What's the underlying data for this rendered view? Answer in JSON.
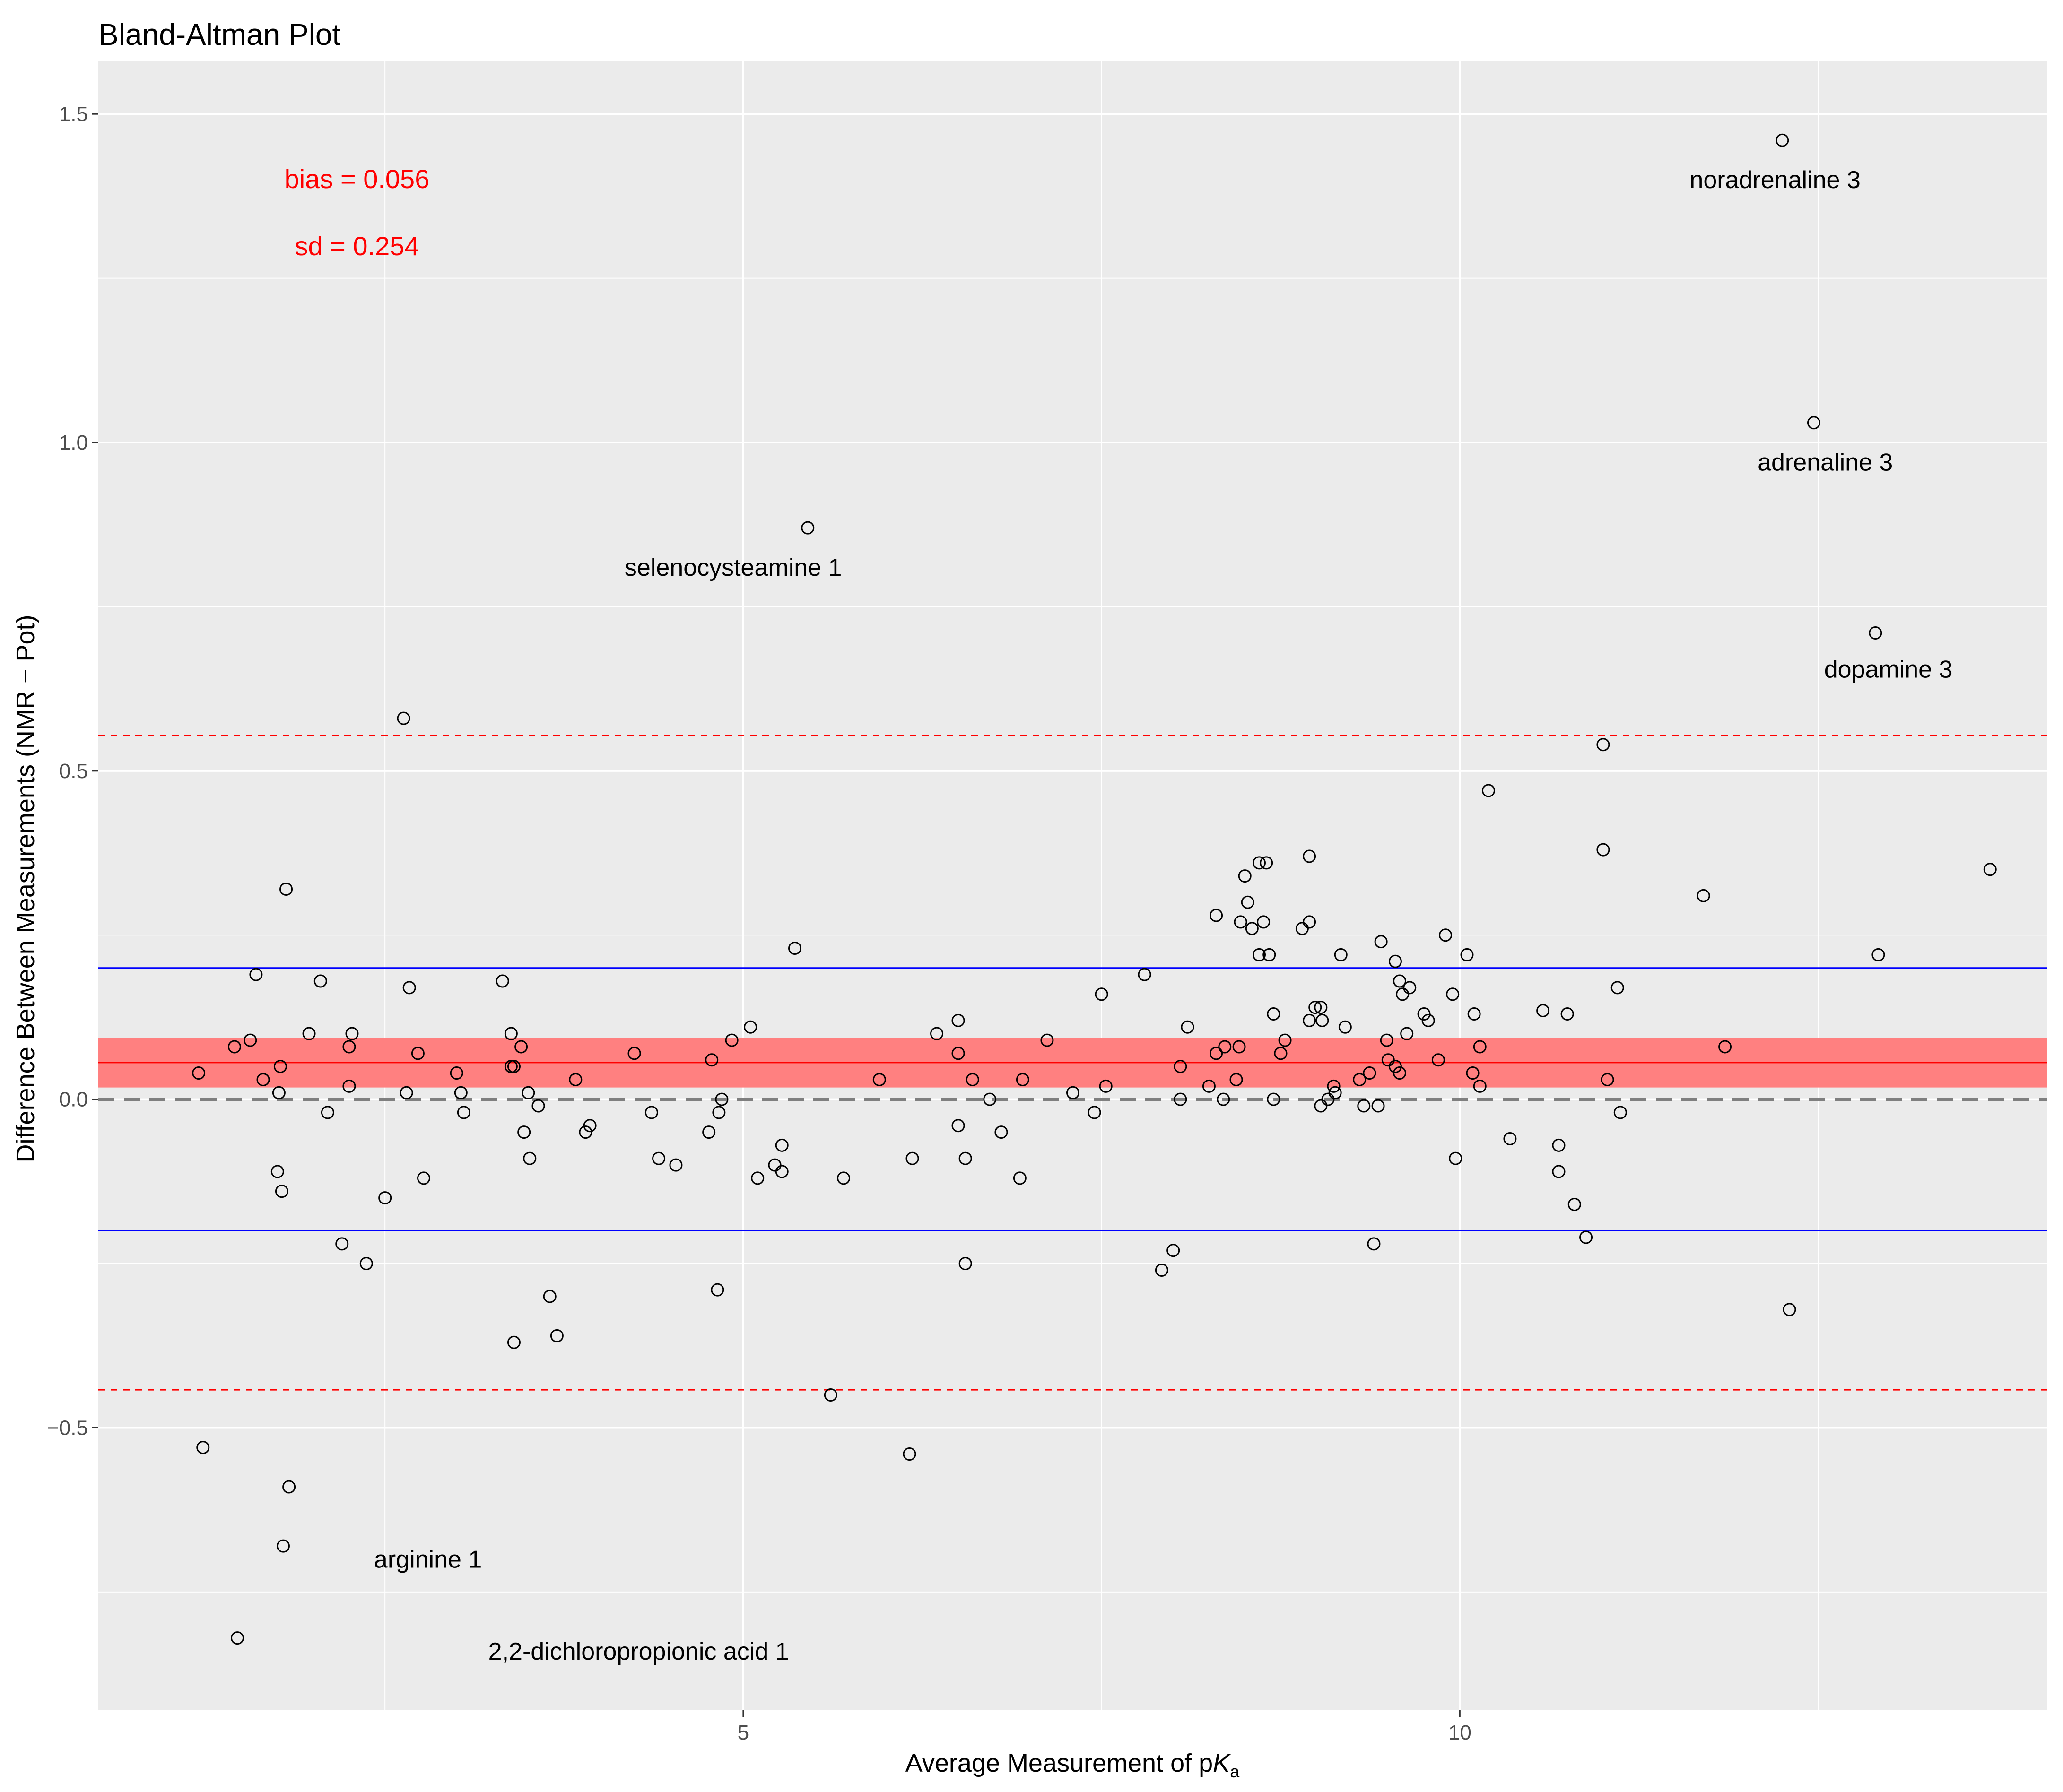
{
  "chart_data": {
    "type": "scatter",
    "title": "Bland-Altman Plot",
    "xlabel": {
      "prefix": "Average Measurement of p",
      "var": "K",
      "sub": "a"
    },
    "ylabel": "Difference Between Measurements (NMR − Pot)",
    "xlim": [
      0.5,
      14.1
    ],
    "ylim": [
      -0.93,
      1.58
    ],
    "x_ticks": [
      5,
      10
    ],
    "x_tick_labels": [
      "5",
      "10"
    ],
    "y_ticks": [
      -0.5,
      0.0,
      0.5,
      1.0,
      1.5
    ],
    "y_tick_labels": [
      "−0.5",
      "0.0",
      "0.5",
      "1.0",
      "1.5"
    ],
    "bias": 0.056,
    "bias_ci": [
      0.018,
      0.094
    ],
    "loa_upper": 0.554,
    "loa_lower": -0.442,
    "inner_band": [
      0.2,
      -0.2
    ],
    "zero_line": 0,
    "stat_labels": {
      "bias": "bias = 0.056",
      "sd": "sd = 0.254"
    },
    "colors": {
      "panel": "#ebebeb",
      "grid": "#ffffff",
      "bias": "#ff0000",
      "band": "#ff8080",
      "loa": "#ff0000",
      "inner": "#0000ff",
      "zero": "#7f7f7f",
      "point": "#000000"
    },
    "annotations": [
      {
        "text": "noradrenaline 3",
        "x": 12.2,
        "y": 1.4
      },
      {
        "text": "adrenaline 3",
        "x": 12.55,
        "y": 0.97
      },
      {
        "text": "selenocysteamine 1",
        "x": 4.93,
        "y": 0.81
      },
      {
        "text": "dopamine 3",
        "x": 12.99,
        "y": 0.655
      },
      {
        "text": "arginine 1",
        "x": 2.8,
        "y": -0.7
      },
      {
        "text": "2,2-dichloropropionic acid 1",
        "x": 4.27,
        "y": -0.84
      }
    ],
    "points": [
      [
        12.25,
        1.46
      ],
      [
        12.47,
        1.03
      ],
      [
        5.45,
        0.87
      ],
      [
        12.9,
        0.71
      ],
      [
        2.63,
        0.58
      ],
      [
        11.0,
        0.54
      ],
      [
        10.2,
        0.47
      ],
      [
        11.0,
        0.38
      ],
      [
        8.95,
        0.37
      ],
      [
        13.7,
        0.35
      ],
      [
        1.81,
        0.32
      ],
      [
        11.7,
        0.31
      ],
      [
        8.5,
        0.34
      ],
      [
        8.6,
        0.36
      ],
      [
        8.65,
        0.36
      ],
      [
        8.52,
        0.3
      ],
      [
        8.3,
        0.28
      ],
      [
        8.47,
        0.27
      ],
      [
        8.55,
        0.26
      ],
      [
        8.63,
        0.27
      ],
      [
        8.9,
        0.26
      ],
      [
        8.95,
        0.27
      ],
      [
        9.9,
        0.25
      ],
      [
        9.45,
        0.24
      ],
      [
        5.36,
        0.23
      ],
      [
        8.6,
        0.22
      ],
      [
        8.67,
        0.22
      ],
      [
        9.17,
        0.22
      ],
      [
        9.55,
        0.21
      ],
      [
        10.05,
        0.22
      ],
      [
        12.92,
        0.22
      ],
      [
        1.6,
        0.19
      ],
      [
        2.05,
        0.18
      ],
      [
        2.67,
        0.17
      ],
      [
        3.32,
        0.18
      ],
      [
        7.8,
        0.19
      ],
      [
        9.58,
        0.18
      ],
      [
        9.6,
        0.16
      ],
      [
        9.65,
        0.17
      ],
      [
        9.95,
        0.16
      ],
      [
        11.1,
        0.17
      ],
      [
        7.5,
        0.16
      ],
      [
        8.99,
        0.14
      ],
      [
        9.03,
        0.14
      ],
      [
        9.04,
        0.12
      ],
      [
        8.95,
        0.12
      ],
      [
        8.7,
        0.13
      ],
      [
        9.2,
        0.11
      ],
      [
        9.75,
        0.13
      ],
      [
        9.78,
        0.12
      ],
      [
        10.1,
        0.13
      ],
      [
        10.58,
        0.135
      ],
      [
        10.75,
        0.13
      ],
      [
        8.1,
        0.11
      ],
      [
        1.2,
        0.04
      ],
      [
        1.45,
        0.08
      ],
      [
        1.56,
        0.09
      ],
      [
        1.65,
        0.03
      ],
      [
        1.76,
        0.01
      ],
      [
        1.77,
        0.05
      ],
      [
        1.97,
        0.1
      ],
      [
        2.25,
        0.08
      ],
      [
        2.27,
        0.1
      ],
      [
        2.25,
        0.02
      ],
      [
        2.65,
        0.01
      ],
      [
        2.73,
        0.07
      ],
      [
        3.0,
        0.04
      ],
      [
        3.03,
        0.01
      ],
      [
        3.38,
        0.05
      ],
      [
        3.38,
        0.1
      ],
      [
        3.45,
        0.08
      ],
      [
        3.4,
        0.05
      ],
      [
        3.5,
        0.01
      ],
      [
        3.83,
        0.03
      ],
      [
        4.24,
        0.07
      ],
      [
        4.78,
        0.06
      ],
      [
        4.92,
        0.09
      ],
      [
        5.05,
        0.11
      ],
      [
        5.95,
        0.03
      ],
      [
        6.35,
        0.1
      ],
      [
        6.5,
        0.12
      ],
      [
        6.5,
        0.07
      ],
      [
        6.6,
        0.03
      ],
      [
        6.95,
        0.03
      ],
      [
        7.12,
        0.09
      ],
      [
        7.3,
        0.01
      ],
      [
        7.53,
        0.02
      ],
      [
        8.05,
        0.05
      ],
      [
        8.25,
        0.02
      ],
      [
        8.3,
        0.07
      ],
      [
        8.36,
        0.08
      ],
      [
        8.44,
        0.03
      ],
      [
        8.46,
        0.08
      ],
      [
        8.75,
        0.07
      ],
      [
        8.78,
        0.09
      ],
      [
        9.12,
        0.02
      ],
      [
        9.13,
        0.01
      ],
      [
        9.3,
        0.03
      ],
      [
        9.37,
        0.04
      ],
      [
        9.5,
        0.06
      ],
      [
        9.55,
        0.05
      ],
      [
        9.58,
        0.04
      ],
      [
        9.63,
        0.1
      ],
      [
        9.49,
        0.09
      ],
      [
        9.85,
        0.06
      ],
      [
        10.09,
        0.04
      ],
      [
        10.14,
        0.02
      ],
      [
        10.14,
        0.08
      ],
      [
        11.03,
        0.03
      ],
      [
        11.85,
        0.08
      ],
      [
        9.97,
        -0.09
      ],
      [
        2.1,
        -0.02
      ],
      [
        3.05,
        -0.02
      ],
      [
        3.57,
        -0.01
      ],
      [
        3.9,
        -0.05
      ],
      [
        3.93,
        -0.04
      ],
      [
        4.36,
        -0.02
      ],
      [
        4.76,
        -0.05
      ],
      [
        4.83,
        -0.02
      ],
      [
        4.85,
        0.0
      ],
      [
        6.5,
        -0.04
      ],
      [
        6.72,
        0.0
      ],
      [
        6.8,
        -0.05
      ],
      [
        7.45,
        -0.02
      ],
      [
        8.05,
        0.0
      ],
      [
        8.35,
        0.0
      ],
      [
        8.7,
        0.0
      ],
      [
        9.03,
        -0.01
      ],
      [
        9.08,
        0.0
      ],
      [
        9.33,
        -0.01
      ],
      [
        9.43,
        -0.01
      ],
      [
        10.35,
        -0.06
      ],
      [
        10.69,
        -0.07
      ],
      [
        11.12,
        -0.02
      ],
      [
        3.47,
        -0.05
      ],
      [
        5.27,
        -0.07
      ],
      [
        5.22,
        -0.1
      ],
      [
        5.27,
        -0.11
      ],
      [
        1.75,
        -0.11
      ],
      [
        1.78,
        -0.14
      ],
      [
        2.5,
        -0.15
      ],
      [
        2.77,
        -0.12
      ],
      [
        3.51,
        -0.09
      ],
      [
        4.41,
        -0.09
      ],
      [
        4.53,
        -0.1
      ],
      [
        5.1,
        -0.12
      ],
      [
        5.7,
        -0.12
      ],
      [
        6.18,
        -0.09
      ],
      [
        6.55,
        -0.09
      ],
      [
        6.93,
        -0.12
      ],
      [
        10.69,
        -0.11
      ],
      [
        10.8,
        -0.16
      ],
      [
        10.88,
        -0.21
      ],
      [
        2.2,
        -0.22
      ],
      [
        2.37,
        -0.25
      ],
      [
        6.55,
        -0.25
      ],
      [
        8.0,
        -0.23
      ],
      [
        9.4,
        -0.22
      ],
      [
        7.92,
        -0.26
      ],
      [
        3.65,
        -0.3
      ],
      [
        3.7,
        -0.36
      ],
      [
        3.4,
        -0.37
      ],
      [
        4.82,
        -0.29
      ],
      [
        12.3,
        -0.32
      ],
      [
        5.61,
        -0.45
      ],
      [
        6.16,
        -0.54
      ],
      [
        1.23,
        -0.53
      ],
      [
        1.83,
        -0.59
      ],
      [
        1.79,
        -0.68
      ],
      [
        1.47,
        -0.82
      ]
    ]
  }
}
